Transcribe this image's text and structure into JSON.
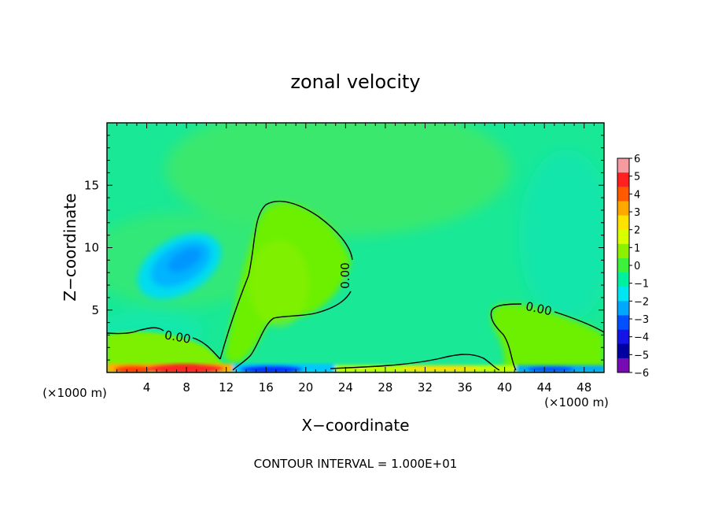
{
  "chart_data": {
    "type": "heatmap",
    "title": "zonal velocity",
    "xlabel": "X−coordinate",
    "ylabel": "Z−coordinate",
    "x_unit": "(×1000 m)",
    "x_unit_right": "(×1000 m)",
    "xlim": [
      0,
      50
    ],
    "ylim": [
      0,
      20
    ],
    "x_ticks": [
      4,
      8,
      12,
      16,
      20,
      24,
      28,
      32,
      36,
      40,
      44,
      48
    ],
    "y_ticks": [
      5,
      10,
      15
    ],
    "colorbar": {
      "levels": [
        6,
        5,
        4,
        3,
        2,
        1,
        0,
        -1,
        -2,
        -3,
        -4,
        -5,
        -6
      ],
      "level_labels": [
        "6",
        "5",
        "4",
        "3",
        "2",
        "1",
        "0",
        "−1",
        "−2",
        "−3",
        "−4",
        "−5",
        "−6"
      ],
      "colors": [
        "#f59aa0",
        "#ff2020",
        "#ff5a00",
        "#ffa800",
        "#ffe200",
        "#d8ff00",
        "#8cf000",
        "#3cf03c",
        "#00f0a0",
        "#00e6f0",
        "#00a8ff",
        "#0050ff",
        "#1414e6",
        "#0000a0",
        "#780ab4"
      ]
    },
    "contour_label": "0.00",
    "contour_interval_text": "CONTOUR INTERVAL = 1.000E+01",
    "grid": false
  }
}
